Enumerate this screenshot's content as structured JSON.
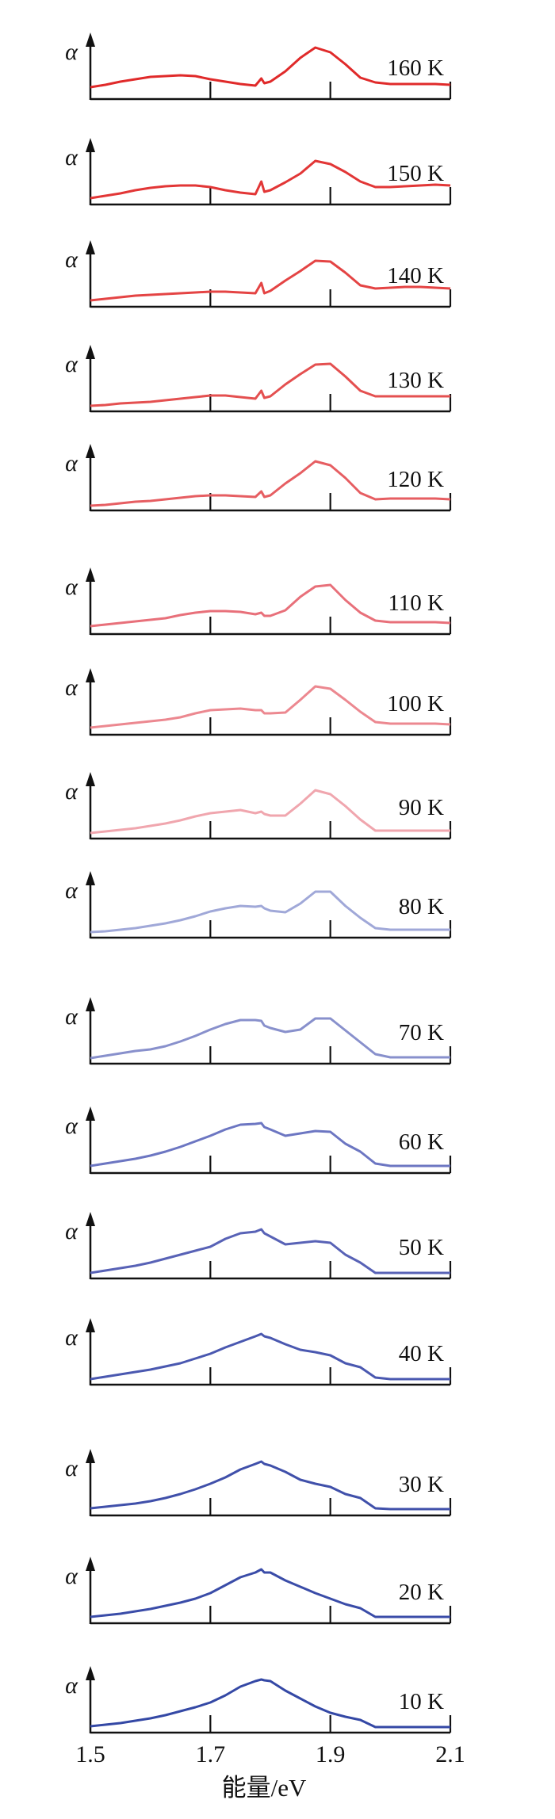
{
  "chart_data": {
    "type": "line",
    "layout": "stacked-panels",
    "xlabel": "能量/eV",
    "ylabel": "α",
    "xlim": [
      1.5,
      2.1
    ],
    "ylim": [
      0,
      80
    ],
    "y_units": "arbitrary",
    "x_ticks": [
      "1.5",
      "1.7",
      "1.9",
      "2.1"
    ],
    "x_tick_values": [
      1.5,
      1.7,
      1.9,
      2.1
    ],
    "grid": false,
    "x": [
      1.5,
      1.525,
      1.55,
      1.575,
      1.6,
      1.625,
      1.65,
      1.675,
      1.7,
      1.725,
      1.75,
      1.775,
      1.785,
      1.79,
      1.8,
      1.825,
      1.85,
      1.875,
      1.9,
      1.925,
      1.95,
      1.975,
      2.0,
      2.025,
      2.05,
      2.075,
      2.1
    ],
    "series": [
      {
        "name": "160 K",
        "color": "#e02a2a",
        "values": [
          15,
          18,
          22,
          25,
          28,
          29,
          30,
          29,
          25,
          22,
          19,
          17,
          26,
          20,
          22,
          35,
          52,
          65,
          59,
          44,
          27,
          21,
          19,
          19,
          19,
          19,
          18
        ]
      },
      {
        "name": "150 K",
        "color": "#e23636",
        "values": [
          8,
          11,
          14,
          18,
          21,
          23,
          24,
          24,
          22,
          18,
          15,
          13,
          29,
          16,
          18,
          28,
          39,
          55,
          51,
          41,
          29,
          22,
          22,
          23,
          24,
          25,
          24
        ]
      },
      {
        "name": "140 K",
        "color": "#e44444",
        "values": [
          8,
          10,
          12,
          14,
          15,
          16,
          17,
          18,
          19,
          19,
          18,
          17,
          30,
          17,
          20,
          33,
          45,
          58,
          57,
          43,
          27,
          23,
          24,
          25,
          25,
          24,
          23
        ]
      },
      {
        "name": "130 K",
        "color": "#e45050",
        "values": [
          7,
          8,
          10,
          11,
          12,
          14,
          16,
          18,
          20,
          20,
          18,
          16,
          26,
          17,
          19,
          34,
          47,
          59,
          60,
          44,
          26,
          19,
          19,
          19,
          19,
          19,
          19
        ]
      },
      {
        "name": "120 K",
        "color": "#e65e62",
        "values": [
          6,
          7,
          9,
          11,
          12,
          14,
          16,
          18,
          19,
          19,
          18,
          17,
          24,
          17,
          19,
          34,
          47,
          62,
          57,
          41,
          22,
          14,
          15,
          15,
          15,
          15,
          14
        ]
      },
      {
        "name": "110 K",
        "color": "#e8707a",
        "values": [
          10,
          12,
          14,
          16,
          18,
          20,
          24,
          27,
          29,
          29,
          28,
          25,
          27,
          23,
          23,
          30,
          47,
          60,
          62,
          43,
          27,
          17,
          15,
          15,
          15,
          15,
          14
        ]
      },
      {
        "name": "100 K",
        "color": "#ec8890",
        "values": [
          9,
          11,
          13,
          15,
          17,
          19,
          22,
          27,
          31,
          32,
          33,
          31,
          31,
          27,
          27,
          28,
          44,
          61,
          58,
          44,
          29,
          16,
          14,
          14,
          14,
          14,
          13
        ]
      },
      {
        "name": "90 K",
        "color": "#f0a6ae",
        "values": [
          7,
          9,
          11,
          13,
          16,
          19,
          23,
          28,
          32,
          34,
          36,
          32,
          34,
          31,
          29,
          29,
          44,
          61,
          56,
          41,
          24,
          10,
          10,
          10,
          10,
          10,
          10
        ]
      },
      {
        "name": "80 K",
        "color": "#a0a8d8",
        "values": [
          7,
          8,
          10,
          12,
          15,
          18,
          22,
          27,
          33,
          37,
          40,
          39,
          40,
          37,
          34,
          32,
          43,
          58,
          58,
          40,
          25,
          12,
          10,
          10,
          10,
          10,
          10
        ]
      },
      {
        "name": "70 K",
        "color": "#8890cc",
        "values": [
          7,
          10,
          13,
          16,
          18,
          22,
          28,
          35,
          43,
          50,
          55,
          55,
          54,
          48,
          45,
          40,
          43,
          57,
          57,
          42,
          27,
          12,
          8,
          8,
          8,
          8,
          8
        ]
      },
      {
        "name": "60 K",
        "color": "#6c76c2",
        "values": [
          9,
          12,
          15,
          18,
          22,
          27,
          33,
          40,
          47,
          55,
          61,
          62,
          63,
          58,
          55,
          47,
          50,
          53,
          52,
          37,
          27,
          12,
          9,
          9,
          9,
          9,
          9
        ]
      },
      {
        "name": "50 K",
        "color": "#5862b6",
        "values": [
          7,
          10,
          13,
          16,
          20,
          25,
          30,
          35,
          40,
          50,
          57,
          59,
          62,
          57,
          53,
          43,
          45,
          47,
          45,
          30,
          20,
          7,
          7,
          7,
          7,
          7,
          7
        ]
      },
      {
        "name": "40 K",
        "color": "#4a58b0",
        "values": [
          7,
          10,
          13,
          16,
          19,
          23,
          27,
          33,
          39,
          47,
          54,
          61,
          64,
          61,
          59,
          51,
          44,
          41,
          37,
          27,
          22,
          9,
          7,
          7,
          7,
          7,
          7
        ]
      },
      {
        "name": "30 K",
        "color": "#4050aa",
        "values": [
          9,
          11,
          13,
          15,
          18,
          22,
          27,
          33,
          40,
          48,
          58,
          65,
          68,
          65,
          63,
          55,
          45,
          40,
          36,
          27,
          22,
          9,
          8,
          8,
          8,
          8,
          8
        ]
      },
      {
        "name": "20 K",
        "color": "#3a4ca8",
        "values": [
          8,
          10,
          12,
          15,
          18,
          22,
          26,
          31,
          38,
          48,
          58,
          64,
          68,
          64,
          64,
          54,
          46,
          38,
          31,
          24,
          19,
          8,
          8,
          8,
          8,
          8,
          8
        ]
      },
      {
        "name": "10 K",
        "color": "#3448a5",
        "values": [
          8,
          10,
          12,
          15,
          18,
          22,
          27,
          32,
          38,
          47,
          58,
          65,
          67,
          66,
          65,
          53,
          43,
          33,
          25,
          20,
          16,
          7,
          7,
          7,
          7,
          7,
          7
        ]
      }
    ]
  }
}
